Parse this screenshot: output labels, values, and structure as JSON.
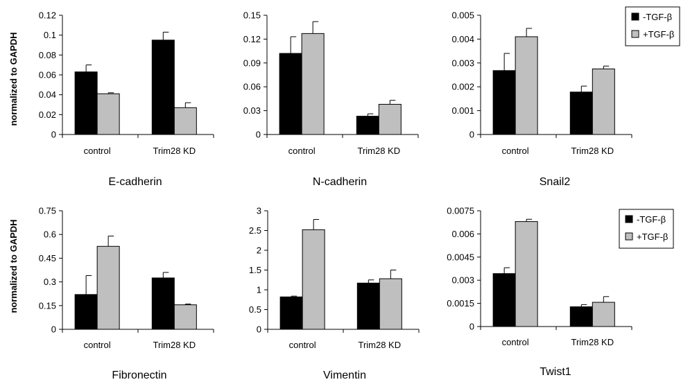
{
  "ylabel": "normalized to GAPDH",
  "legend": [
    {
      "label": "-TGF-β",
      "color": "#000000"
    },
    {
      "label": "+TGF-β",
      "color": "#bfbfbf"
    }
  ],
  "colors": {
    "minus": "#000000",
    "plus": "#bfbfbf"
  },
  "chart_data": [
    {
      "type": "bar",
      "title": "E-cadherin",
      "categories": [
        "control",
        "Trim28 KD"
      ],
      "ticks": [
        "0",
        "0.02",
        "0.04",
        "0.06",
        "0.08",
        "0.1",
        "0.12"
      ],
      "ylim": [
        0,
        0.12
      ],
      "series": [
        {
          "name": "-TGF-β",
          "values": [
            0.063,
            0.095
          ],
          "errors": [
            0.007,
            0.008
          ]
        },
        {
          "name": "+TGF-β",
          "values": [
            0.041,
            0.027
          ],
          "errors": [
            0.001,
            0.005
          ]
        }
      ]
    },
    {
      "type": "bar",
      "title": "N-cadherin",
      "categories": [
        "control",
        "Trim28 KD"
      ],
      "ticks": [
        "0",
        "0.03",
        "0.06",
        "0.09",
        "0.12",
        "0.15"
      ],
      "ylim": [
        0,
        0.15
      ],
      "series": [
        {
          "name": "-TGF-β",
          "values": [
            0.102,
            0.023
          ],
          "errors": [
            0.021,
            0.003
          ]
        },
        {
          "name": "+TGF-β",
          "values": [
            0.127,
            0.038
          ],
          "errors": [
            0.015,
            0.005
          ]
        }
      ]
    },
    {
      "type": "bar",
      "title": "Snail2",
      "categories": [
        "control",
        "Trim28 KD"
      ],
      "ticks": [
        "0",
        "0.001",
        "0.002",
        "0.003",
        "0.004",
        "0.005"
      ],
      "ylim": [
        0,
        0.005
      ],
      "series": [
        {
          "name": "-TGF-β",
          "values": [
            0.00268,
            0.00178
          ],
          "errors": [
            0.00072,
            0.00025
          ]
        },
        {
          "name": "+TGF-β",
          "values": [
            0.0041,
            0.00275
          ],
          "errors": [
            0.00035,
            0.00012
          ]
        }
      ]
    },
    {
      "type": "bar",
      "title": "Fibronectin",
      "categories": [
        "control",
        "Trim28 KD"
      ],
      "ticks": [
        "0",
        "0.15",
        "0.3",
        "0.45",
        "0.6",
        "0.75"
      ],
      "ylim": [
        0,
        0.75
      ],
      "series": [
        {
          "name": "-TGF-β",
          "values": [
            0.22,
            0.325
          ],
          "errors": [
            0.12,
            0.035
          ]
        },
        {
          "name": "+TGF-β",
          "values": [
            0.525,
            0.155
          ],
          "errors": [
            0.065,
            0.005
          ]
        }
      ]
    },
    {
      "type": "bar",
      "title": "Vimentin",
      "categories": [
        "control",
        "Trim28 KD"
      ],
      "ticks": [
        "0",
        "0.5",
        "1",
        "1.5",
        "2",
        "2.5",
        "3"
      ],
      "ylim": [
        0,
        3
      ],
      "series": [
        {
          "name": "-TGF-β",
          "values": [
            0.82,
            1.17
          ],
          "errors": [
            0.02,
            0.08
          ]
        },
        {
          "name": "+TGF-β",
          "values": [
            2.52,
            1.28
          ],
          "errors": [
            0.26,
            0.22
          ]
        }
      ]
    },
    {
      "type": "bar",
      "title": "Twist1",
      "categories": [
        "control",
        "Trim28 KD"
      ],
      "ticks": [
        "0",
        "0.0015",
        "0.003",
        "0.0045",
        "0.006",
        "0.0075"
      ],
      "ylim": [
        0,
        0.0075
      ],
      "series": [
        {
          "name": "-TGF-β",
          "values": [
            0.00343,
            0.00128
          ],
          "errors": [
            0.00038,
            0.00014
          ]
        },
        {
          "name": "+TGF-β",
          "values": [
            0.0068,
            0.00157
          ],
          "errors": [
            0.00015,
            0.00037
          ]
        }
      ]
    }
  ]
}
